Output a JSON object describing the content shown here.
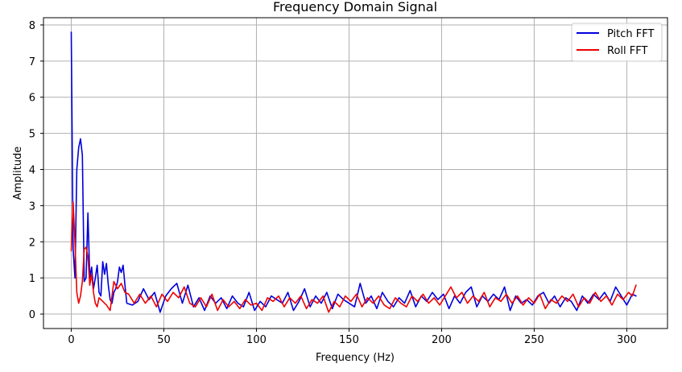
{
  "chart_data": {
    "type": "line",
    "title": "Frequency Domain Signal",
    "xlabel": "Frequency (Hz)",
    "ylabel": "Amplitude",
    "xlim": [
      -15,
      322
    ],
    "ylim": [
      -0.4,
      8.2
    ],
    "xticks": [
      0,
      50,
      100,
      150,
      200,
      250,
      300
    ],
    "yticks": [
      0,
      1,
      2,
      3,
      4,
      5,
      6,
      7,
      8
    ],
    "grid": true,
    "legend_position": "top-right",
    "series": [
      {
        "name": "Pitch FFT",
        "color": "#0000dd",
        "points": [
          [
            0,
            7.8
          ],
          [
            1,
            1.8
          ],
          [
            2,
            1.0
          ],
          [
            3,
            4.0
          ],
          [
            4,
            4.6
          ],
          [
            5,
            4.85
          ],
          [
            6,
            4.4
          ],
          [
            7,
            0.9
          ],
          [
            8,
            1.0
          ],
          [
            9,
            2.8
          ],
          [
            10,
            1.0
          ],
          [
            11,
            1.3
          ],
          [
            12,
            0.7
          ],
          [
            13,
            1.0
          ],
          [
            14,
            1.35
          ],
          [
            15,
            0.6
          ],
          [
            16,
            0.5
          ],
          [
            17,
            1.45
          ],
          [
            18,
            1.1
          ],
          [
            19,
            1.4
          ],
          [
            20,
            0.8
          ],
          [
            21,
            0.4
          ],
          [
            22,
            0.3
          ],
          [
            23,
            0.6
          ],
          [
            24,
            0.7
          ],
          [
            25,
            0.9
          ],
          [
            26,
            1.3
          ],
          [
            27,
            1.15
          ],
          [
            28,
            1.35
          ],
          [
            29,
            0.8
          ],
          [
            30,
            0.3
          ],
          [
            33,
            0.25
          ],
          [
            36,
            0.35
          ],
          [
            39,
            0.7
          ],
          [
            42,
            0.4
          ],
          [
            45,
            0.6
          ],
          [
            48,
            0.05
          ],
          [
            51,
            0.5
          ],
          [
            54,
            0.7
          ],
          [
            57,
            0.85
          ],
          [
            60,
            0.3
          ],
          [
            63,
            0.8
          ],
          [
            66,
            0.2
          ],
          [
            69,
            0.45
          ],
          [
            72,
            0.1
          ],
          [
            75,
            0.5
          ],
          [
            78,
            0.3
          ],
          [
            81,
            0.45
          ],
          [
            84,
            0.15
          ],
          [
            87,
            0.5
          ],
          [
            90,
            0.3
          ],
          [
            93,
            0.2
          ],
          [
            96,
            0.6
          ],
          [
            99,
            0.1
          ],
          [
            102,
            0.35
          ],
          [
            105,
            0.2
          ],
          [
            108,
            0.5
          ],
          [
            111,
            0.4
          ],
          [
            114,
            0.3
          ],
          [
            117,
            0.6
          ],
          [
            120,
            0.1
          ],
          [
            123,
            0.35
          ],
          [
            126,
            0.7
          ],
          [
            129,
            0.2
          ],
          [
            132,
            0.5
          ],
          [
            135,
            0.3
          ],
          [
            138,
            0.6
          ],
          [
            141,
            0.15
          ],
          [
            144,
            0.55
          ],
          [
            147,
            0.4
          ],
          [
            150,
            0.3
          ],
          [
            153,
            0.2
          ],
          [
            156,
            0.85
          ],
          [
            159,
            0.3
          ],
          [
            162,
            0.5
          ],
          [
            165,
            0.15
          ],
          [
            168,
            0.6
          ],
          [
            171,
            0.35
          ],
          [
            174,
            0.2
          ],
          [
            177,
            0.45
          ],
          [
            180,
            0.3
          ],
          [
            183,
            0.65
          ],
          [
            186,
            0.2
          ],
          [
            189,
            0.5
          ],
          [
            192,
            0.35
          ],
          [
            195,
            0.6
          ],
          [
            198,
            0.4
          ],
          [
            201,
            0.55
          ],
          [
            204,
            0.15
          ],
          [
            207,
            0.5
          ],
          [
            210,
            0.3
          ],
          [
            213,
            0.6
          ],
          [
            216,
            0.75
          ],
          [
            219,
            0.2
          ],
          [
            222,
            0.5
          ],
          [
            225,
            0.35
          ],
          [
            228,
            0.55
          ],
          [
            231,
            0.4
          ],
          [
            234,
            0.75
          ],
          [
            237,
            0.1
          ],
          [
            240,
            0.5
          ],
          [
            243,
            0.3
          ],
          [
            246,
            0.4
          ],
          [
            249,
            0.25
          ],
          [
            252,
            0.5
          ],
          [
            255,
            0.6
          ],
          [
            258,
            0.3
          ],
          [
            261,
            0.5
          ],
          [
            264,
            0.2
          ],
          [
            267,
            0.45
          ],
          [
            270,
            0.35
          ],
          [
            273,
            0.1
          ],
          [
            276,
            0.5
          ],
          [
            279,
            0.3
          ],
          [
            282,
            0.55
          ],
          [
            285,
            0.4
          ],
          [
            288,
            0.6
          ],
          [
            291,
            0.35
          ],
          [
            294,
            0.75
          ],
          [
            297,
            0.5
          ],
          [
            300,
            0.25
          ],
          [
            303,
            0.55
          ],
          [
            305,
            0.5
          ]
        ]
      },
      {
        "name": "Roll FFT",
        "color": "#ee0000",
        "points": [
          [
            0,
            1.75
          ],
          [
            1,
            3.1
          ],
          [
            2,
            2.0
          ],
          [
            3,
            0.6
          ],
          [
            4,
            0.3
          ],
          [
            5,
            0.5
          ],
          [
            6,
            0.9
          ],
          [
            7,
            1.8
          ],
          [
            8,
            1.85
          ],
          [
            9,
            1.6
          ],
          [
            10,
            0.8
          ],
          [
            11,
            1.1
          ],
          [
            12,
            0.6
          ],
          [
            13,
            0.3
          ],
          [
            14,
            0.2
          ],
          [
            15,
            0.45
          ],
          [
            17,
            0.35
          ],
          [
            19,
            0.25
          ],
          [
            21,
            0.1
          ],
          [
            23,
            0.9
          ],
          [
            25,
            0.7
          ],
          [
            27,
            0.85
          ],
          [
            29,
            0.6
          ],
          [
            31,
            0.55
          ],
          [
            34,
            0.3
          ],
          [
            37,
            0.55
          ],
          [
            40,
            0.3
          ],
          [
            43,
            0.5
          ],
          [
            46,
            0.2
          ],
          [
            49,
            0.55
          ],
          [
            52,
            0.35
          ],
          [
            55,
            0.6
          ],
          [
            58,
            0.45
          ],
          [
            61,
            0.75
          ],
          [
            64,
            0.3
          ],
          [
            67,
            0.2
          ],
          [
            70,
            0.45
          ],
          [
            73,
            0.2
          ],
          [
            76,
            0.55
          ],
          [
            79,
            0.1
          ],
          [
            82,
            0.4
          ],
          [
            85,
            0.2
          ],
          [
            88,
            0.35
          ],
          [
            91,
            0.15
          ],
          [
            94,
            0.4
          ],
          [
            97,
            0.25
          ],
          [
            100,
            0.3
          ],
          [
            103,
            0.1
          ],
          [
            106,
            0.45
          ],
          [
            109,
            0.35
          ],
          [
            112,
            0.5
          ],
          [
            115,
            0.2
          ],
          [
            118,
            0.45
          ],
          [
            121,
            0.3
          ],
          [
            124,
            0.5
          ],
          [
            127,
            0.15
          ],
          [
            130,
            0.4
          ],
          [
            133,
            0.3
          ],
          [
            136,
            0.5
          ],
          [
            139,
            0.05
          ],
          [
            142,
            0.35
          ],
          [
            145,
            0.2
          ],
          [
            148,
            0.5
          ],
          [
            151,
            0.35
          ],
          [
            154,
            0.55
          ],
          [
            157,
            0.2
          ],
          [
            160,
            0.45
          ],
          [
            163,
            0.3
          ],
          [
            166,
            0.5
          ],
          [
            169,
            0.25
          ],
          [
            172,
            0.15
          ],
          [
            175,
            0.45
          ],
          [
            178,
            0.3
          ],
          [
            181,
            0.2
          ],
          [
            184,
            0.5
          ],
          [
            187,
            0.35
          ],
          [
            190,
            0.55
          ],
          [
            193,
            0.3
          ],
          [
            196,
            0.45
          ],
          [
            199,
            0.25
          ],
          [
            202,
            0.5
          ],
          [
            205,
            0.75
          ],
          [
            208,
            0.45
          ],
          [
            211,
            0.6
          ],
          [
            214,
            0.3
          ],
          [
            217,
            0.5
          ],
          [
            220,
            0.35
          ],
          [
            223,
            0.6
          ],
          [
            226,
            0.2
          ],
          [
            229,
            0.45
          ],
          [
            232,
            0.35
          ],
          [
            235,
            0.55
          ],
          [
            238,
            0.3
          ],
          [
            241,
            0.5
          ],
          [
            244,
            0.25
          ],
          [
            247,
            0.45
          ],
          [
            250,
            0.3
          ],
          [
            253,
            0.55
          ],
          [
            256,
            0.15
          ],
          [
            259,
            0.4
          ],
          [
            262,
            0.3
          ],
          [
            265,
            0.5
          ],
          [
            268,
            0.35
          ],
          [
            271,
            0.55
          ],
          [
            274,
            0.2
          ],
          [
            277,
            0.45
          ],
          [
            280,
            0.3
          ],
          [
            283,
            0.6
          ],
          [
            286,
            0.35
          ],
          [
            289,
            0.5
          ],
          [
            292,
            0.25
          ],
          [
            295,
            0.55
          ],
          [
            298,
            0.4
          ],
          [
            301,
            0.6
          ],
          [
            303,
            0.5
          ],
          [
            305,
            0.8
          ]
        ]
      }
    ]
  }
}
